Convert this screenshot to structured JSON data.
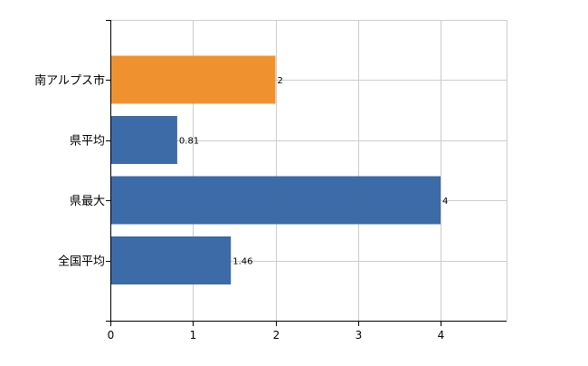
{
  "chart_data": {
    "type": "bar",
    "orientation": "horizontal",
    "categories": [
      "南アルプス市",
      "県平均",
      "県最大",
      "全国平均"
    ],
    "values": [
      2,
      0.81,
      4,
      1.46
    ],
    "data_labels": [
      "2",
      "0.81",
      "4",
      "1.46"
    ],
    "xlim": [
      0,
      4.8
    ],
    "x_ticks": [
      0,
      1,
      2,
      3,
      4
    ],
    "grid": true,
    "colors": {
      "highlight": "#F0912F",
      "default": "#3C6BA8",
      "grid": "#CCCCCC",
      "axis": "#000000"
    },
    "highlight_index": 0
  }
}
